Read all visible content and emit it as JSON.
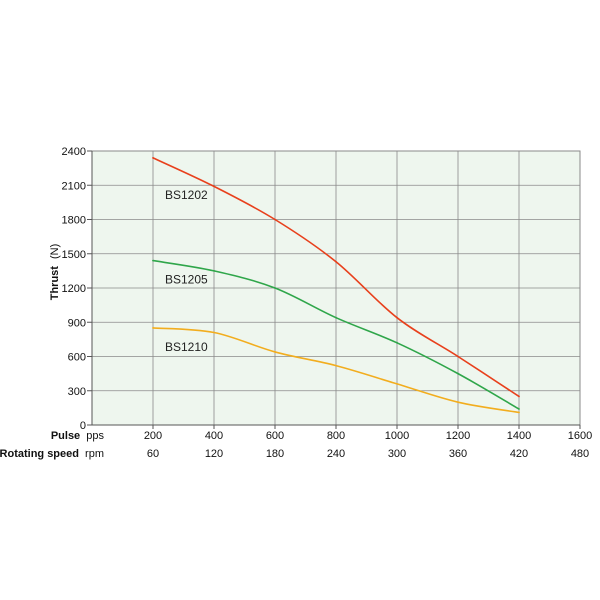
{
  "chart_data": {
    "type": "line",
    "ylabel": {
      "name": "Thrust",
      "unit": "(N)"
    },
    "ylim": [
      0,
      2400
    ],
    "yticks": [
      0,
      300,
      600,
      900,
      1200,
      1500,
      1800,
      2100,
      2400
    ],
    "xlim": [
      0,
      1600
    ],
    "x_axis_rows": [
      {
        "name": "Pulse",
        "unit": "pps",
        "ticks": [
          "200",
          "400",
          "600",
          "800",
          "1000",
          "1200",
          "1400",
          "1600"
        ]
      },
      {
        "name": "Rotating speed",
        "unit": "rpm",
        "ticks": [
          "60",
          "120",
          "180",
          "240",
          "300",
          "360",
          "420",
          "480"
        ]
      }
    ],
    "grid": true,
    "colors": {
      "background": "#eef6ee",
      "grid": "#8a8a8a",
      "axis": "#555555"
    },
    "series": [
      {
        "name": "BS1202",
        "color": "#e8401c",
        "x": [
          200,
          400,
          600,
          800,
          1000,
          1200,
          1400
        ],
        "y": [
          2340,
          2090,
          1800,
          1430,
          940,
          600,
          250
        ]
      },
      {
        "name": "BS1205",
        "color": "#2fa64a",
        "x": [
          200,
          400,
          600,
          800,
          1000,
          1200,
          1400
        ],
        "y": [
          1440,
          1350,
          1200,
          940,
          720,
          450,
          140
        ]
      },
      {
        "name": "BS1210",
        "color": "#f2ad1e",
        "x": [
          200,
          400,
          600,
          800,
          1000,
          1200,
          1400
        ],
        "y": [
          850,
          810,
          640,
          520,
          360,
          200,
          110
        ]
      }
    ]
  }
}
